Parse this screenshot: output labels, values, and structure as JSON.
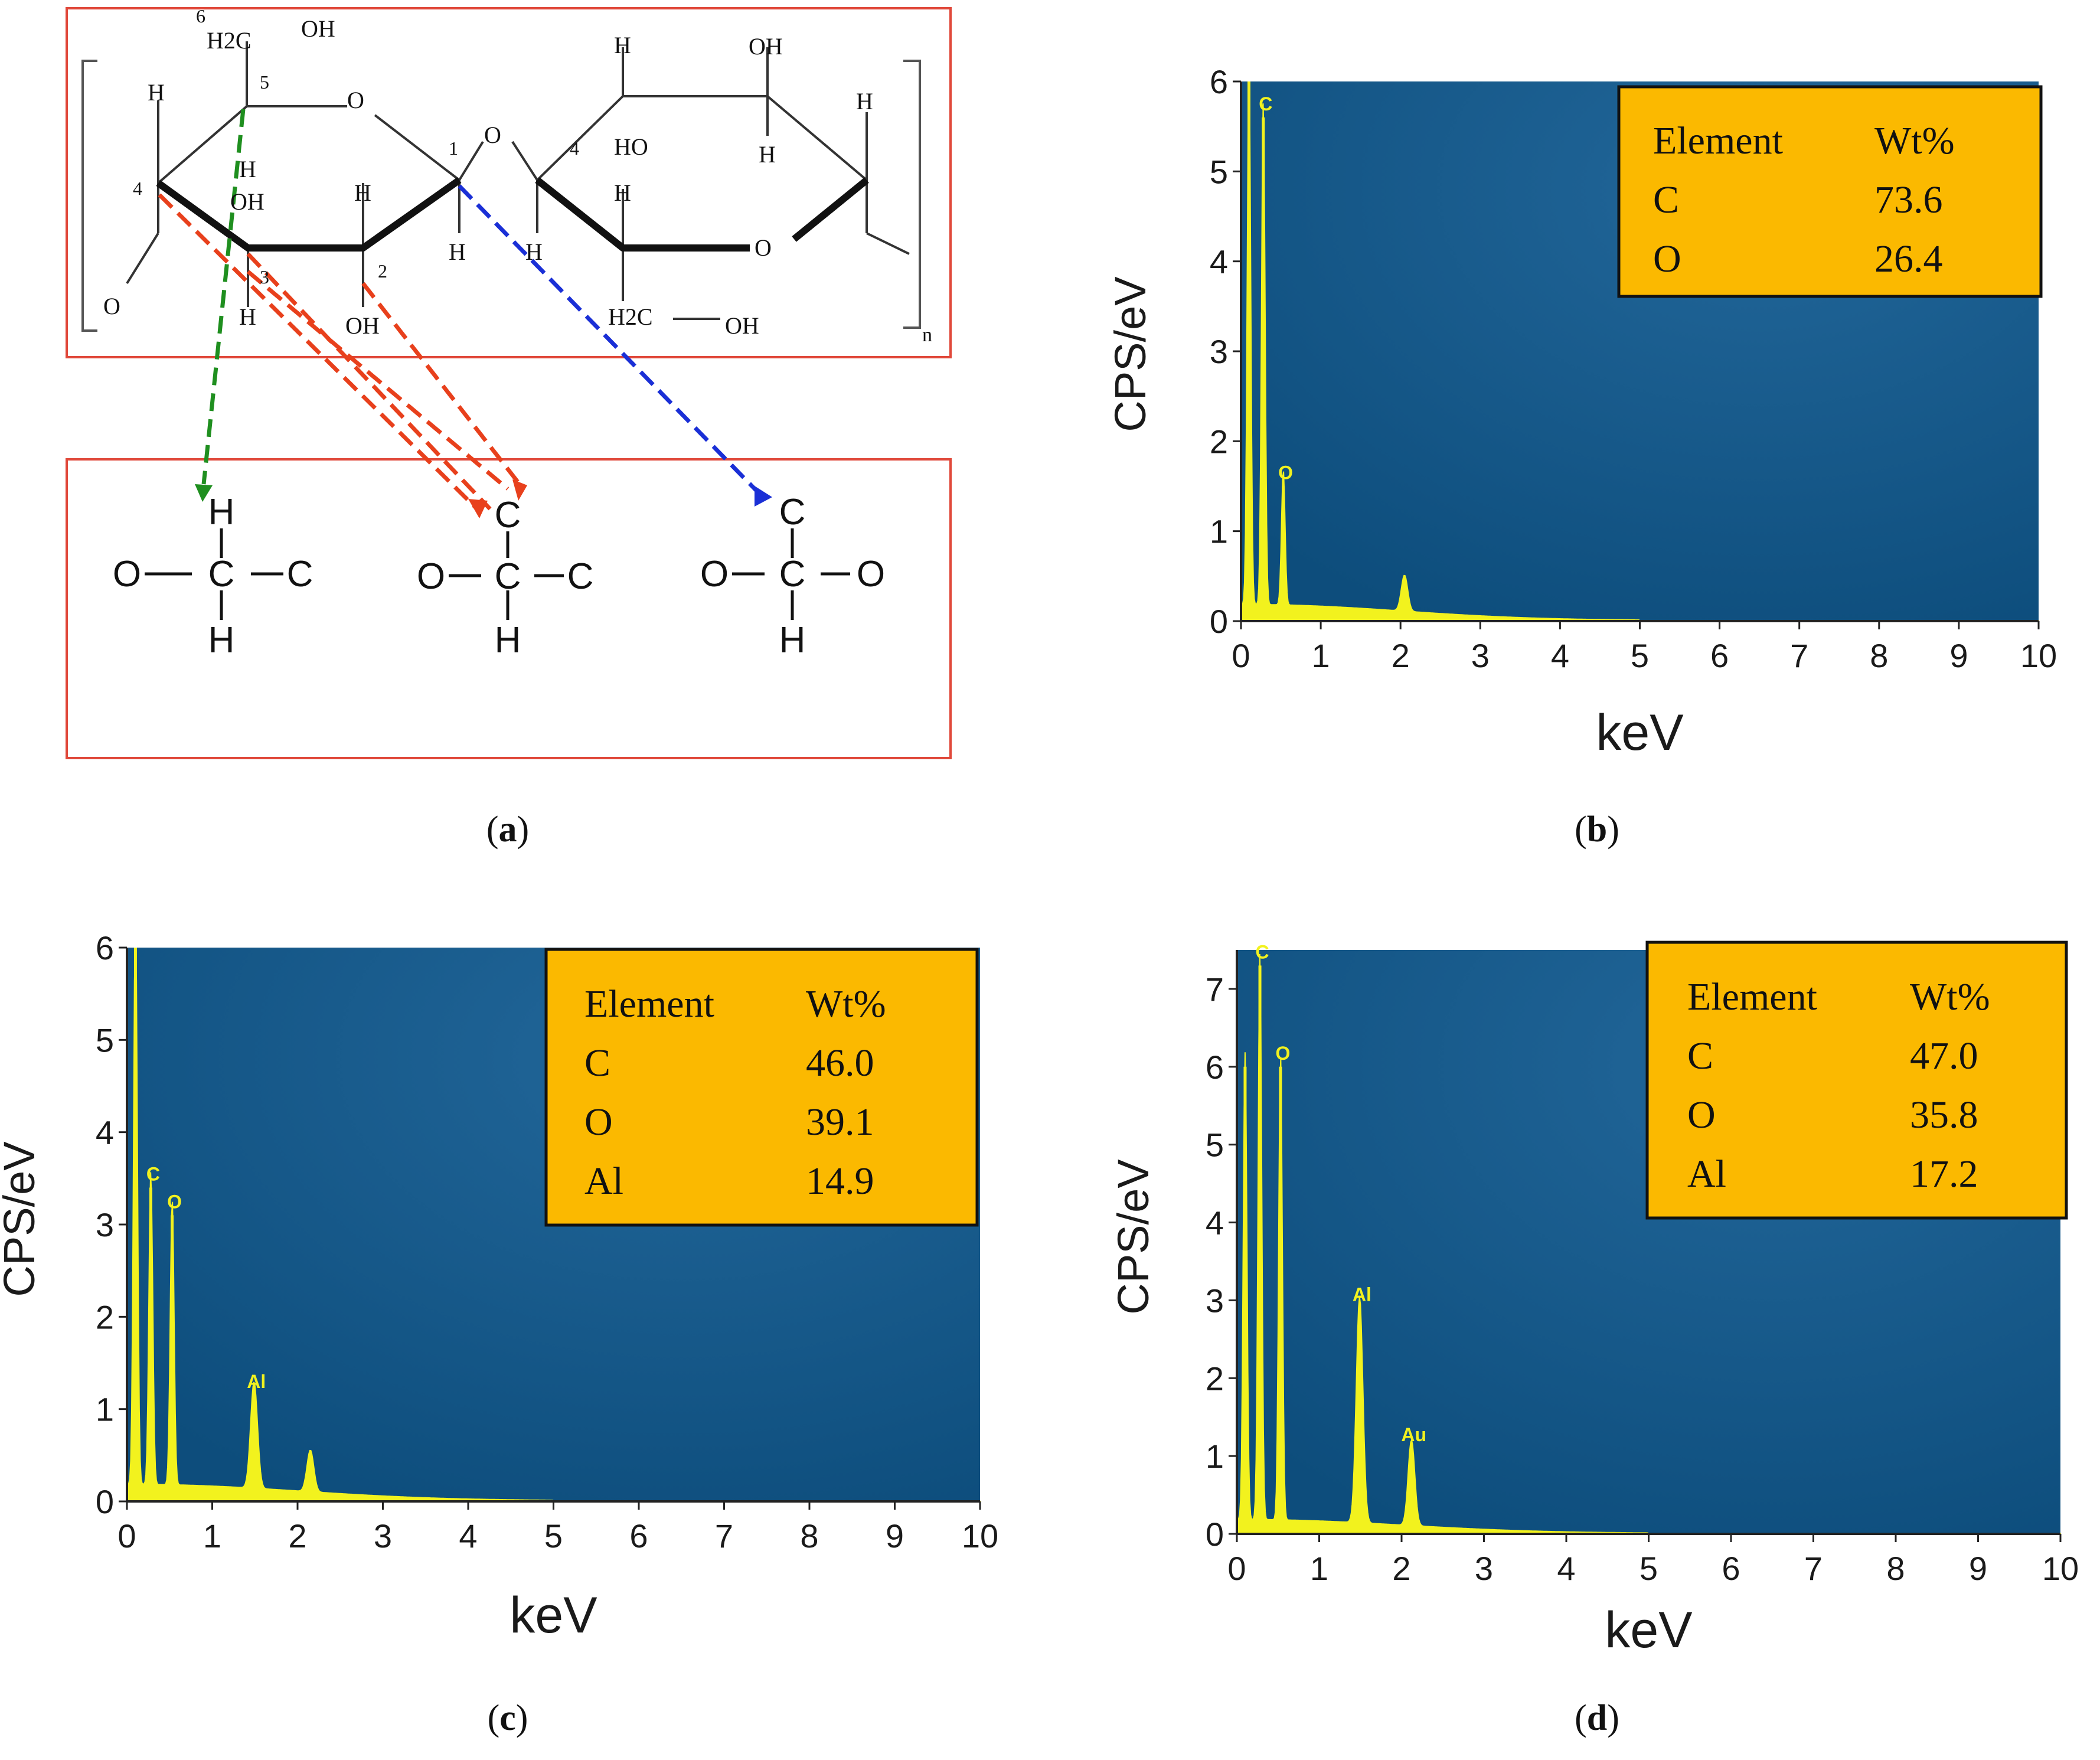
{
  "structure": {
    "polymer_labels": [
      "6",
      "H2C",
      "OH",
      "5",
      "O",
      "H",
      "H",
      "4",
      "OH",
      "H",
      "3",
      "2",
      "1",
      "O",
      "4",
      "H",
      "H",
      "OH",
      "HO",
      "H",
      "H",
      "H",
      "O",
      "H2C",
      "OH",
      "H",
      "OH",
      "O",
      "H",
      "n"
    ],
    "fragments": [
      {
        "top": "H",
        "left": "O",
        "center": "C",
        "right": "C",
        "bottom": "H"
      },
      {
        "top": "C",
        "left": "O",
        "center": "C",
        "right": "C",
        "bottom": "H"
      },
      {
        "top": "C",
        "left": "O",
        "center": "C",
        "right": "O",
        "bottom": "H"
      }
    ],
    "arrow_colors": {
      "green": "#1f8f1f",
      "red": "#e8401c",
      "blue": "#1a2fd6"
    }
  },
  "captions": {
    "a": "a",
    "b": "b",
    "c": "c",
    "d": "d"
  },
  "colors": {
    "plot_bg": "#0d4d7c",
    "spectrum": "#f2f21e",
    "table_bg": "#fbb900"
  },
  "chart_data": [
    {
      "id": "b",
      "type": "line",
      "xlabel": "keV",
      "ylabel": "CPS/eV",
      "xlim": [
        0,
        10
      ],
      "ylim": [
        0,
        6
      ],
      "xticks": [
        "0",
        "1",
        "2",
        "3",
        "4",
        "5",
        "6",
        "7",
        "8",
        "9",
        "10"
      ],
      "yticks": [
        "0",
        "1",
        "2",
        "3",
        "4",
        "5",
        "6"
      ],
      "peaks": [
        {
          "x": 0.1,
          "y": 6.0
        },
        {
          "x": 0.28,
          "y": 5.6
        },
        {
          "x": 0.53,
          "y": 1.5
        },
        {
          "x": 2.05,
          "y": 0.4
        }
      ],
      "peak_labels": [
        {
          "label": "C",
          "x": 0.28,
          "y": 5.6
        },
        {
          "label": "O",
          "x": 0.53,
          "y": 1.5
        }
      ],
      "table": {
        "headers": [
          "Element",
          "Wt%"
        ],
        "rows": [
          [
            "C",
            "73.6"
          ],
          [
            "O",
            "26.4"
          ]
        ]
      }
    },
    {
      "id": "c",
      "type": "line",
      "xlabel": "keV",
      "ylabel": "CPS/eV",
      "xlim": [
        0,
        10
      ],
      "ylim": [
        0,
        6
      ],
      "xticks": [
        "0",
        "1",
        "2",
        "3",
        "4",
        "5",
        "6",
        "7",
        "8",
        "9",
        "10"
      ],
      "yticks": [
        "0",
        "1",
        "2",
        "3",
        "4",
        "5",
        "6"
      ],
      "peaks": [
        {
          "x": 0.1,
          "y": 6.2
        },
        {
          "x": 0.28,
          "y": 3.4
        },
        {
          "x": 0.53,
          "y": 3.1
        },
        {
          "x": 1.49,
          "y": 1.15
        },
        {
          "x": 2.15,
          "y": 0.45
        }
      ],
      "peak_labels": [
        {
          "label": "C",
          "x": 0.28,
          "y": 3.4
        },
        {
          "label": "O",
          "x": 0.53,
          "y": 3.1
        },
        {
          "label": "Al",
          "x": 1.49,
          "y": 1.15
        }
      ],
      "table": {
        "headers": [
          "Element",
          "Wt%"
        ],
        "rows": [
          [
            "C",
            "46.0"
          ],
          [
            "O",
            "39.1"
          ],
          [
            "Al",
            "14.9"
          ]
        ]
      }
    },
    {
      "id": "d",
      "type": "line",
      "xlabel": "keV",
      "ylabel": "CPS/eV",
      "xlim": [
        0,
        10
      ],
      "ylim": [
        0,
        7.5
      ],
      "xticks": [
        "0",
        "1",
        "2",
        "3",
        "4",
        "5",
        "6",
        "7",
        "8",
        "9",
        "10"
      ],
      "yticks": [
        "0",
        "1",
        "2",
        "3",
        "4",
        "5",
        "6",
        "7"
      ],
      "peaks": [
        {
          "x": 0.1,
          "y": 6.0
        },
        {
          "x": 0.28,
          "y": 7.3
        },
        {
          "x": 0.53,
          "y": 6.0
        },
        {
          "x": 1.49,
          "y": 2.9
        },
        {
          "x": 2.12,
          "y": 1.1
        }
      ],
      "peak_labels": [
        {
          "label": "C",
          "x": 0.28,
          "y": 7.3
        },
        {
          "label": "O",
          "x": 0.53,
          "y": 6.0
        },
        {
          "label": "Al",
          "x": 1.49,
          "y": 2.9
        },
        {
          "label": "Au",
          "x": 2.12,
          "y": 1.1
        }
      ],
      "table": {
        "headers": [
          "Element",
          "Wt%"
        ],
        "rows": [
          [
            "C",
            "47.0"
          ],
          [
            "O",
            "35.8"
          ],
          [
            "Al",
            "17.2"
          ]
        ]
      }
    }
  ]
}
